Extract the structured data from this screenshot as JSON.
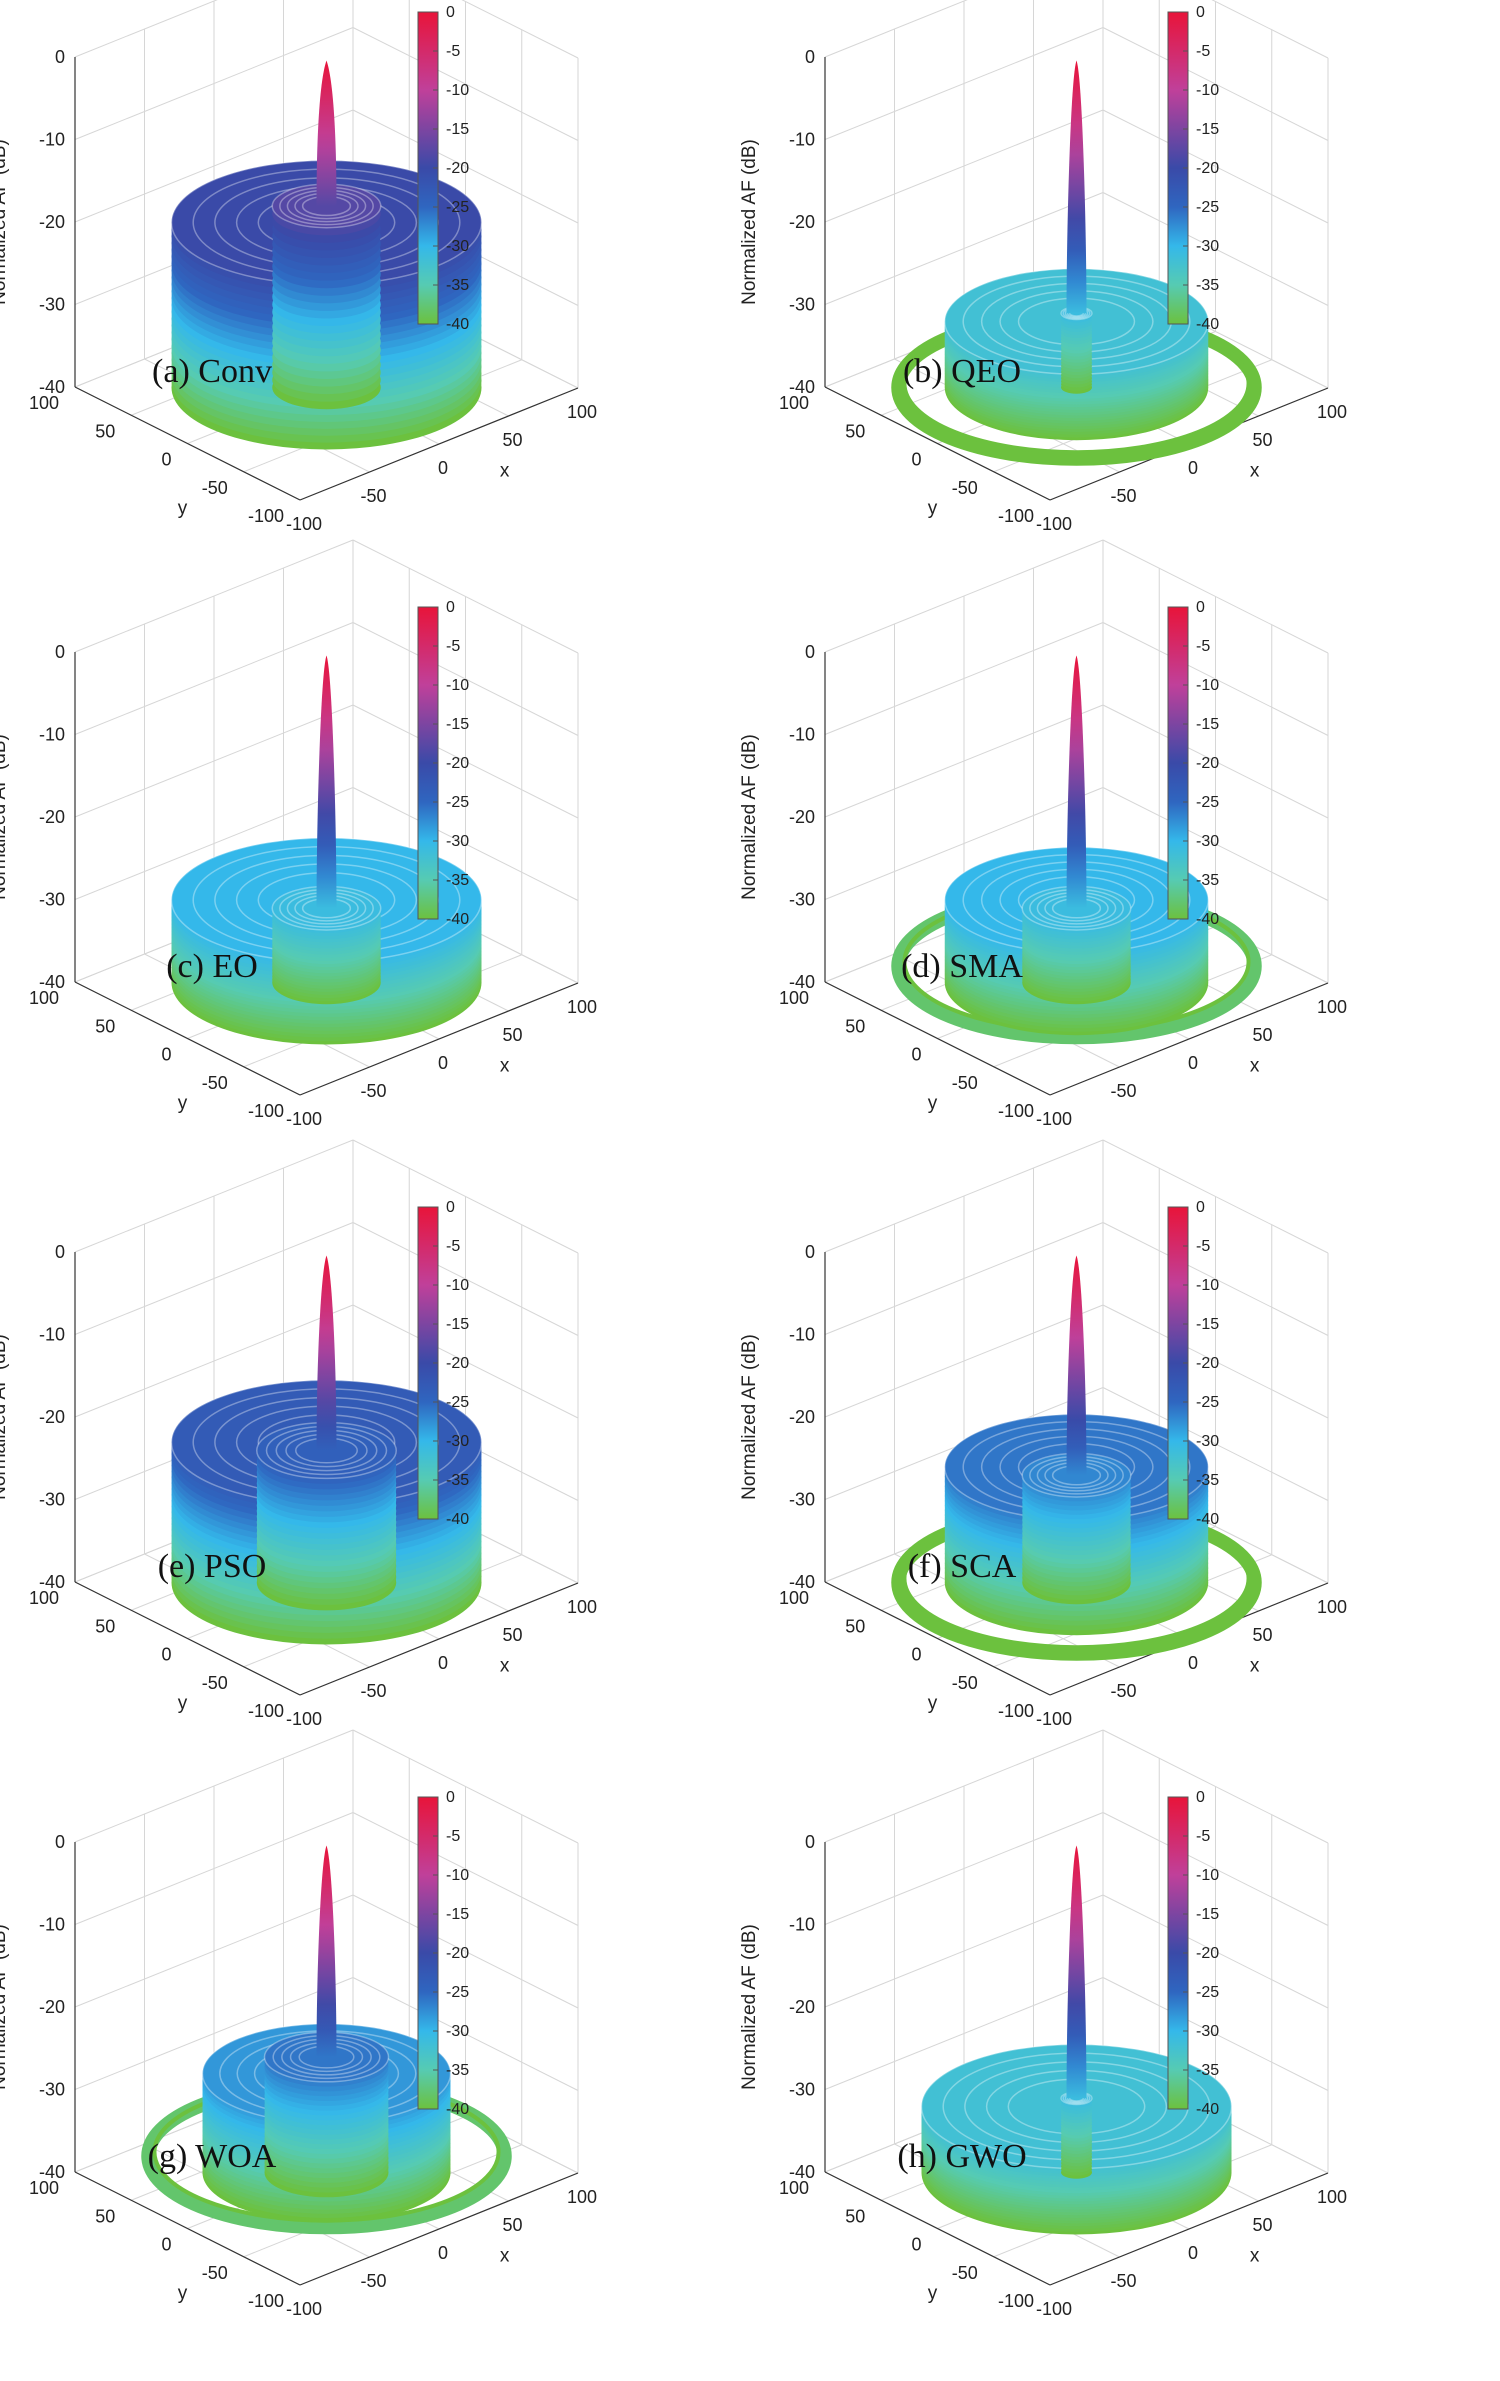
{
  "figure": {
    "colorbar": {
      "range": [
        -40,
        0
      ],
      "ticks": [
        "0",
        "-5",
        "-10",
        "-15",
        "-20",
        "-25",
        "-30",
        "-35",
        "-40"
      ],
      "stops": [
        {
          "value": 0,
          "color": "#e8143a"
        },
        {
          "value": -10,
          "color": "#c0409a"
        },
        {
          "value": -20,
          "color": "#3a4aa8"
        },
        {
          "value": -25,
          "color": "#2f66c0"
        },
        {
          "value": -30,
          "color": "#34b8ea"
        },
        {
          "value": -35,
          "color": "#56cbb2"
        },
        {
          "value": -40,
          "color": "#6cc13e"
        }
      ]
    },
    "axes": {
      "zlabel": "Normalized AF (dB)",
      "xlabel": "x",
      "ylabel": "y",
      "z_ticks": [
        "0",
        "-10",
        "-20",
        "-30",
        "-40"
      ],
      "x_ticks": [
        "-100",
        "-50",
        "0",
        "50",
        "100"
      ],
      "y_ticks": [
        "100",
        "50",
        "0",
        "-50",
        "-100"
      ]
    }
  },
  "chart_data": [
    {
      "type": "surface3d",
      "caption": "(a) Conv",
      "peak_db": 0,
      "zlim": [
        -40,
        0
      ],
      "rings": [
        {
          "radius": 100,
          "db": -20
        },
        {
          "radius": 35,
          "db": -18
        }
      ],
      "outer_ring": null
    },
    {
      "type": "surface3d",
      "caption": "(b) QEO",
      "peak_db": 0,
      "zlim": [
        -40,
        0
      ],
      "rings": [
        {
          "radius": 85,
          "db": -32
        },
        {
          "radius": 10,
          "db": -31
        }
      ],
      "outer_ring": {
        "radius": 115,
        "db": -40
      }
    },
    {
      "type": "surface3d",
      "caption": "(c) EO",
      "peak_db": 0,
      "zlim": [
        -40,
        0
      ],
      "rings": [
        {
          "radius": 100,
          "db": -30
        },
        {
          "radius": 35,
          "db": -31
        }
      ],
      "outer_ring": null
    },
    {
      "type": "surface3d",
      "caption": "(d) SMA",
      "peak_db": 0,
      "zlim": [
        -40,
        0
      ],
      "rings": [
        {
          "radius": 85,
          "db": -30
        },
        {
          "radius": 35,
          "db": -31
        }
      ],
      "outer_ring": {
        "radius": 115,
        "db": -38
      }
    },
    {
      "type": "surface3d",
      "caption": "(e) PSO",
      "peak_db": 0,
      "zlim": [
        -40,
        0
      ],
      "rings": [
        {
          "radius": 100,
          "db": -23
        },
        {
          "radius": 45,
          "db": -24
        }
      ],
      "outer_ring": null
    },
    {
      "type": "surface3d",
      "caption": "(f) SCA",
      "peak_db": 0,
      "zlim": [
        -40,
        0
      ],
      "rings": [
        {
          "radius": 85,
          "db": -26
        },
        {
          "radius": 35,
          "db": -27
        }
      ],
      "outer_ring": {
        "radius": 115,
        "db": -40
      }
    },
    {
      "type": "surface3d",
      "caption": "(g) WOA",
      "peak_db": 0,
      "zlim": [
        -40,
        0
      ],
      "rings": [
        {
          "radius": 80,
          "db": -28
        },
        {
          "radius": 40,
          "db": -26
        }
      ],
      "outer_ring": {
        "radius": 115,
        "db": -38
      }
    },
    {
      "type": "surface3d",
      "caption": "(h) GWO",
      "peak_db": 0,
      "zlim": [
        -40,
        0
      ],
      "rings": [
        {
          "radius": 100,
          "db": -32
        },
        {
          "radius": 10,
          "db": -31
        }
      ],
      "outer_ring": null
    }
  ]
}
